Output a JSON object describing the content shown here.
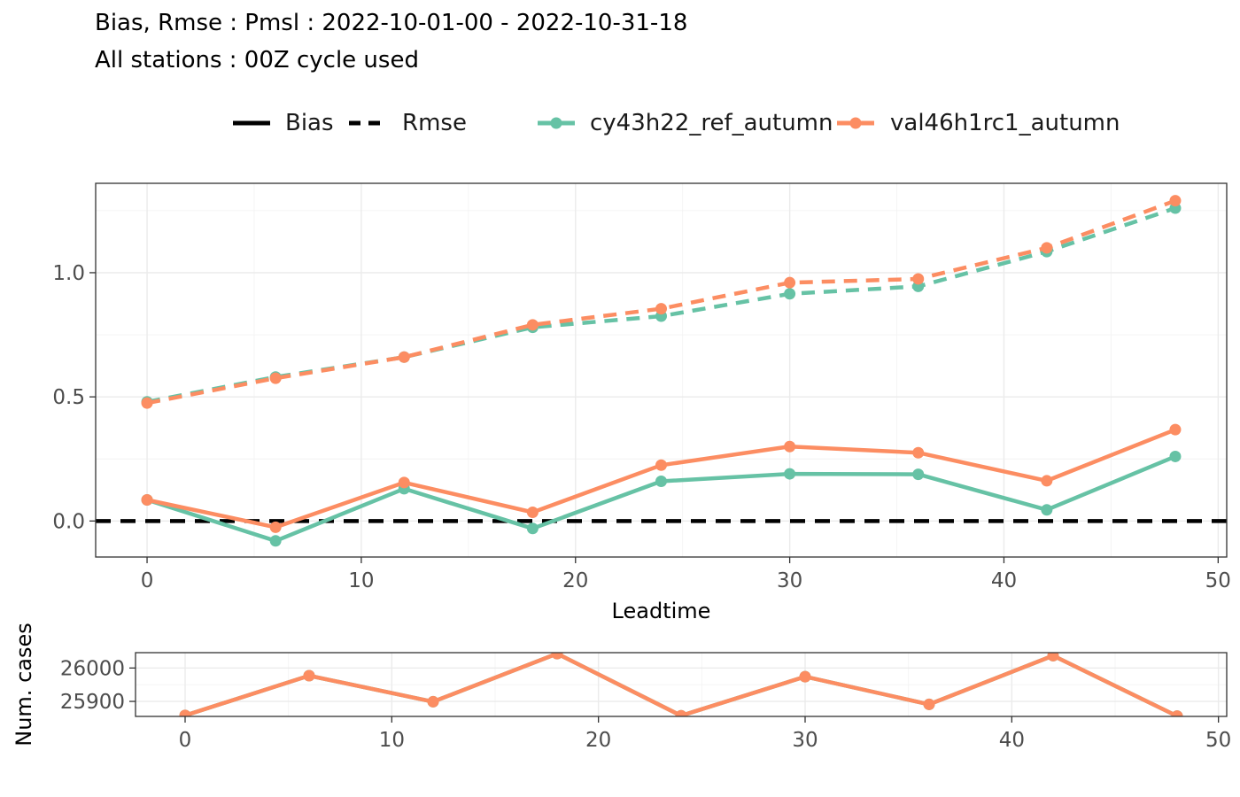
{
  "title_line1": "Bias, Rmse : Pmsl : 2022-10-01-00 - 2022-10-31-18",
  "title_line2": "All stations : 00Z cycle used",
  "legend": {
    "linetype_items": [
      {
        "label": "Bias",
        "dash": "solid"
      },
      {
        "label": "Rmse",
        "dash": "dashed"
      }
    ],
    "color_items": [
      {
        "label": "cy43h22_ref_autumn",
        "color": "#66c2a5"
      },
      {
        "label": "val46h1rc1_autumn",
        "color": "#fc8d62"
      }
    ]
  },
  "chart_data": [
    {
      "type": "line",
      "xlabel": "Leadtime",
      "ylabel": "",
      "xlim": [
        -2.4,
        50.4
      ],
      "ylim": [
        -0.145,
        1.36
      ],
      "x_ticks": [
        0,
        10,
        20,
        30,
        40,
        50
      ],
      "y_ticks": [
        0.0,
        0.5,
        1.0
      ],
      "y_tick_labels": [
        "0.0",
        "0.5",
        "1.0"
      ],
      "grid": true,
      "x": [
        0,
        6,
        12,
        18,
        24,
        30,
        36,
        42,
        48
      ],
      "reference_line": {
        "y": 0,
        "style": "dashed",
        "color": "#000000"
      },
      "series": [
        {
          "name": "cy43h22_ref_autumn",
          "metric": "Bias",
          "color": "#66c2a5",
          "dash": "solid",
          "values": [
            0.085,
            -0.08,
            0.13,
            -0.03,
            0.16,
            0.19,
            0.188,
            0.045,
            0.26
          ]
        },
        {
          "name": "val46h1rc1_autumn",
          "metric": "Bias",
          "color": "#fc8d62",
          "dash": "solid",
          "values": [
            0.085,
            -0.025,
            0.155,
            0.035,
            0.225,
            0.3,
            0.275,
            0.162,
            0.368
          ]
        },
        {
          "name": "cy43h22_ref_autumn",
          "metric": "Rmse",
          "color": "#66c2a5",
          "dash": "dashed",
          "values": [
            0.48,
            0.58,
            0.66,
            0.78,
            0.825,
            0.915,
            0.945,
            1.085,
            1.26
          ]
        },
        {
          "name": "val46h1rc1_autumn",
          "metric": "Rmse",
          "color": "#fc8d62",
          "dash": "dashed",
          "values": [
            0.475,
            0.575,
            0.66,
            0.79,
            0.855,
            0.96,
            0.975,
            1.1,
            1.29
          ]
        }
      ]
    },
    {
      "type": "line",
      "xlabel": "",
      "ylabel": "Num. cases",
      "xlim": [
        -2.4,
        50.4
      ],
      "ylim": [
        25855,
        26046
      ],
      "x_ticks": [
        0,
        10,
        20,
        30,
        40,
        50
      ],
      "y_ticks": [
        25900,
        26000
      ],
      "y_tick_labels": [
        "25900",
        "26000"
      ],
      "grid": true,
      "x": [
        0,
        6,
        12,
        18,
        24,
        30,
        36,
        42,
        48
      ],
      "series": [
        {
          "name": "cy43h22_ref_autumn",
          "color": "#66c2a5",
          "dash": "solid",
          "values": [
            25858,
            25977,
            25899,
            26043,
            25857,
            25974,
            25891,
            26037,
            25856
          ]
        },
        {
          "name": "val46h1rc1_autumn",
          "color": "#fc8d62",
          "dash": "solid",
          "values": [
            25858,
            25977,
            25899,
            26043,
            25857,
            25974,
            25891,
            26037,
            25856
          ]
        }
      ]
    }
  ]
}
